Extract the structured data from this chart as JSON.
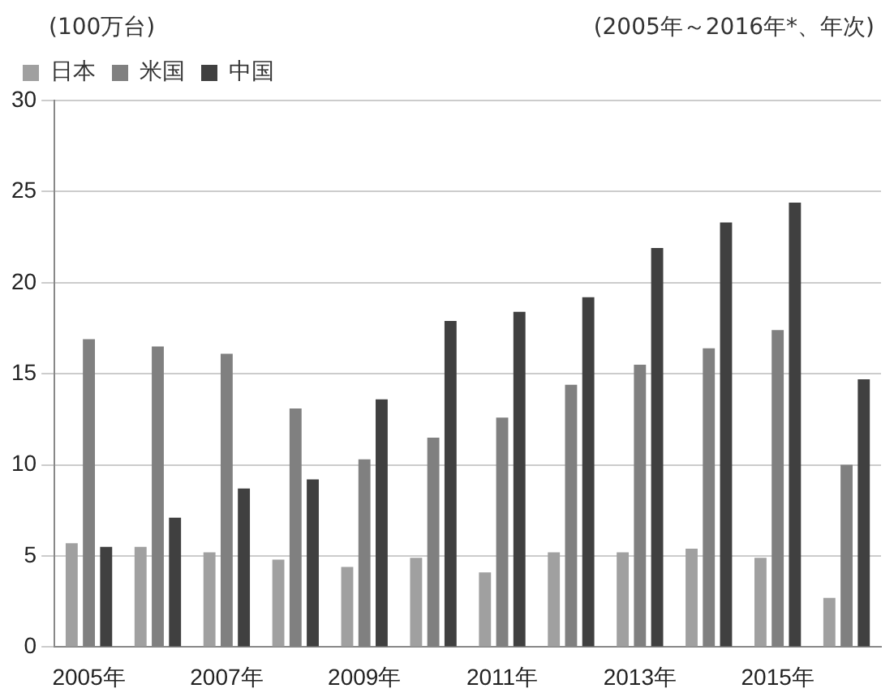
{
  "chart_data": {
    "type": "bar",
    "ylabel": "(100万台)",
    "subtitle": "(2005年～2016年*、年次)",
    "categories": [
      "2005年",
      null,
      "2007年",
      null,
      "2009年",
      null,
      "2011年",
      null,
      "2013年",
      null,
      "2015年",
      null
    ],
    "series": [
      {
        "name": "日本",
        "color": "#a0a0a0",
        "values": [
          5.7,
          5.5,
          5.2,
          4.8,
          4.4,
          4.9,
          4.1,
          5.2,
          5.2,
          5.4,
          4.9,
          2.7
        ]
      },
      {
        "name": "米国",
        "color": "#808080",
        "values": [
          16.9,
          16.5,
          16.1,
          13.1,
          10.3,
          11.5,
          12.6,
          14.4,
          15.5,
          16.4,
          17.4,
          10.0
        ]
      },
      {
        "name": "中国",
        "color": "#404040",
        "values": [
          5.5,
          7.1,
          8.7,
          9.2,
          13.6,
          17.9,
          18.4,
          19.2,
          21.9,
          23.3,
          24.4,
          14.7
        ]
      }
    ],
    "ylim": [
      0,
      30
    ],
    "yticks": [
      0,
      5,
      10,
      15,
      20,
      25,
      30
    ],
    "grid": "y",
    "legend": "top left"
  }
}
